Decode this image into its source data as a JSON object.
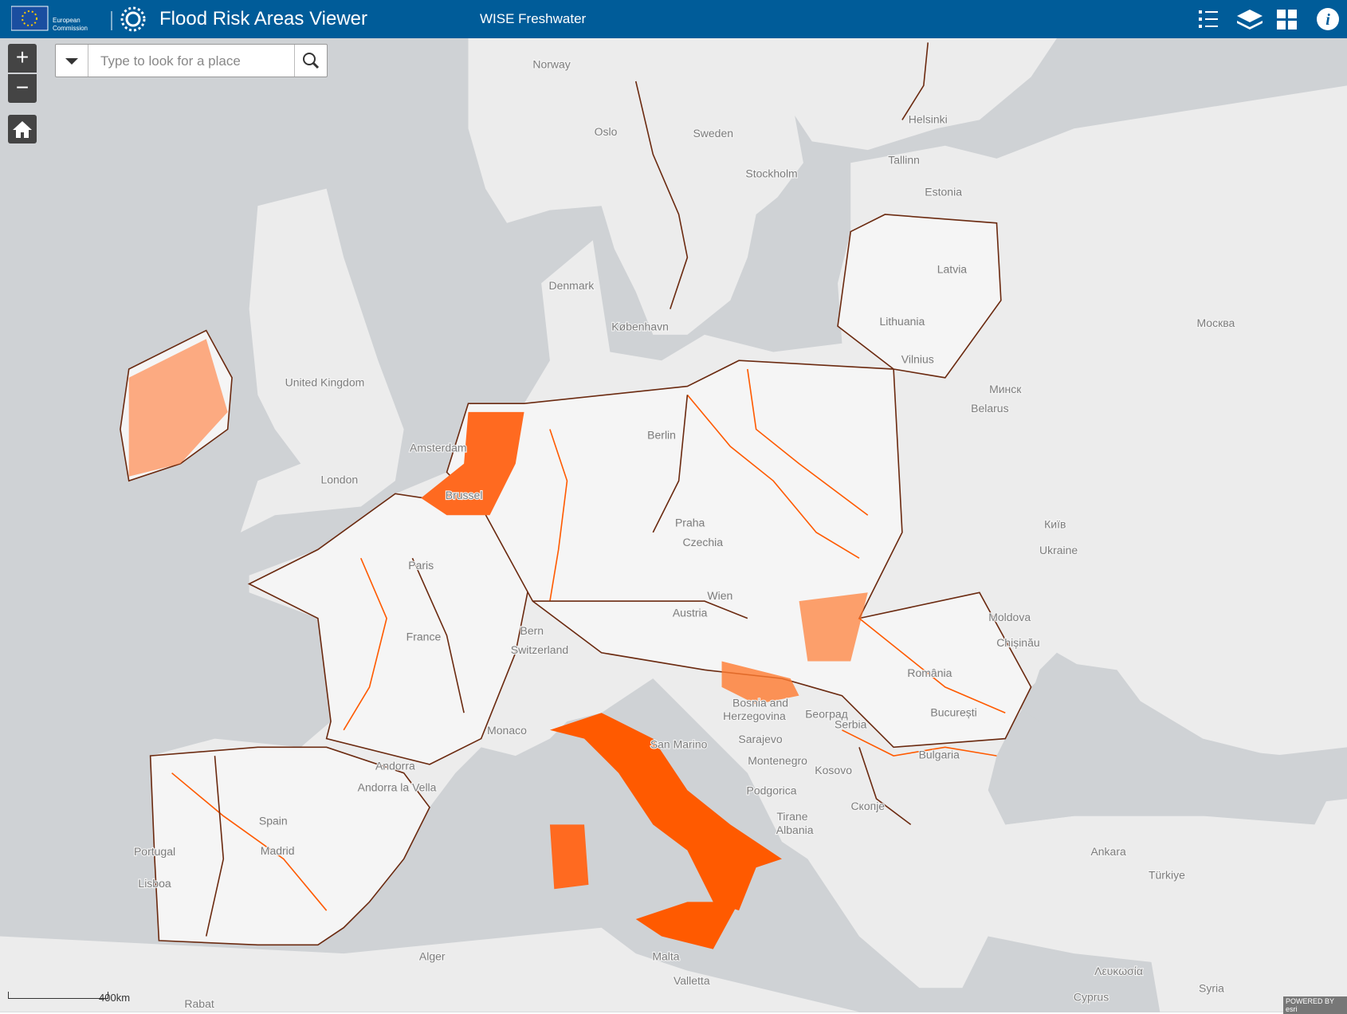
{
  "header": {
    "logo_text": [
      "European",
      "Commission"
    ],
    "title": "Flood Risk Areas Viewer",
    "subtitle": "WISE Freshwater"
  },
  "controls": {
    "zoom_in": "+",
    "zoom_out": "−"
  },
  "search": {
    "placeholder": "Type to look for a place"
  },
  "map": {
    "labels": [
      "Norway",
      "Oslo",
      "Sweden",
      "Stockholm",
      "Helsinki",
      "Tallinn",
      "Estonia",
      "Latvia",
      "Denmark",
      "København",
      "Lithuania",
      "Vilnius",
      "Москва",
      "Минск",
      "Belarus",
      "United Kingdom",
      "Amsterdam",
      "London",
      "Brussel",
      "Berlin",
      "Praha",
      "Czechia",
      "Київ",
      "Ukraine",
      "Paris",
      "Wien",
      "Austria",
      "Moldova",
      "Chișinău",
      "Bern",
      "Switzerland",
      "France",
      "România",
      "Bosnia and",
      "Herzegovina",
      "Београд",
      "Serbia",
      "București",
      "Monaco",
      "San Marino",
      "Sarajevo",
      "Bulgaria",
      "Kosovo",
      "Andorra",
      "Andorra la Vella",
      "Montenegro",
      "Podgorica",
      "Скопје",
      "Tirane",
      "Albania",
      "Spain",
      "Madrid",
      "Portugal",
      "Lisboa",
      "Ankara",
      "Türkiye",
      "Alger",
      "Malta",
      "Valletta",
      "Rabat",
      "Λευκωσία",
      "Cyprus",
      "Syria"
    ]
  },
  "scale": "400km",
  "attribution": "POWERED BY esri"
}
